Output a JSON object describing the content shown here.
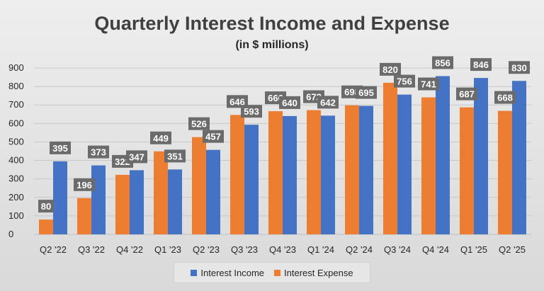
{
  "chart_data": {
    "type": "bar",
    "title": "Quarterly Interest Income and Expense",
    "subtitle": "(in $ millions)",
    "xlabel": "",
    "ylabel": "",
    "ylim": [
      0,
      900
    ],
    "yticks": [
      0,
      100,
      200,
      300,
      400,
      500,
      600,
      700,
      800,
      900
    ],
    "grid": true,
    "legend_position": "bottom",
    "categories": [
      "Q2 '22",
      "Q3 '22",
      "Q4 '22",
      "Q1 '23",
      "Q2 '23",
      "Q3 '23",
      "Q4 '23",
      "Q1 '24",
      "Q2 '24",
      "Q3 '24",
      "Q4 '24",
      "Q1 '25",
      "Q2 '25"
    ],
    "series": [
      {
        "name": "Interest Expense",
        "color": "#ed7d31",
        "values": [
          80,
          196,
          322,
          449,
          526,
          646,
          666,
          672,
          698,
          820,
          741,
          687,
          668
        ]
      },
      {
        "name": "Interest Income",
        "color": "#4472c4",
        "values": [
          395,
          373,
          347,
          351,
          457,
          593,
          640,
          642,
          695,
          756,
          856,
          846,
          830
        ]
      }
    ],
    "legend_order": [
      1,
      0
    ]
  }
}
